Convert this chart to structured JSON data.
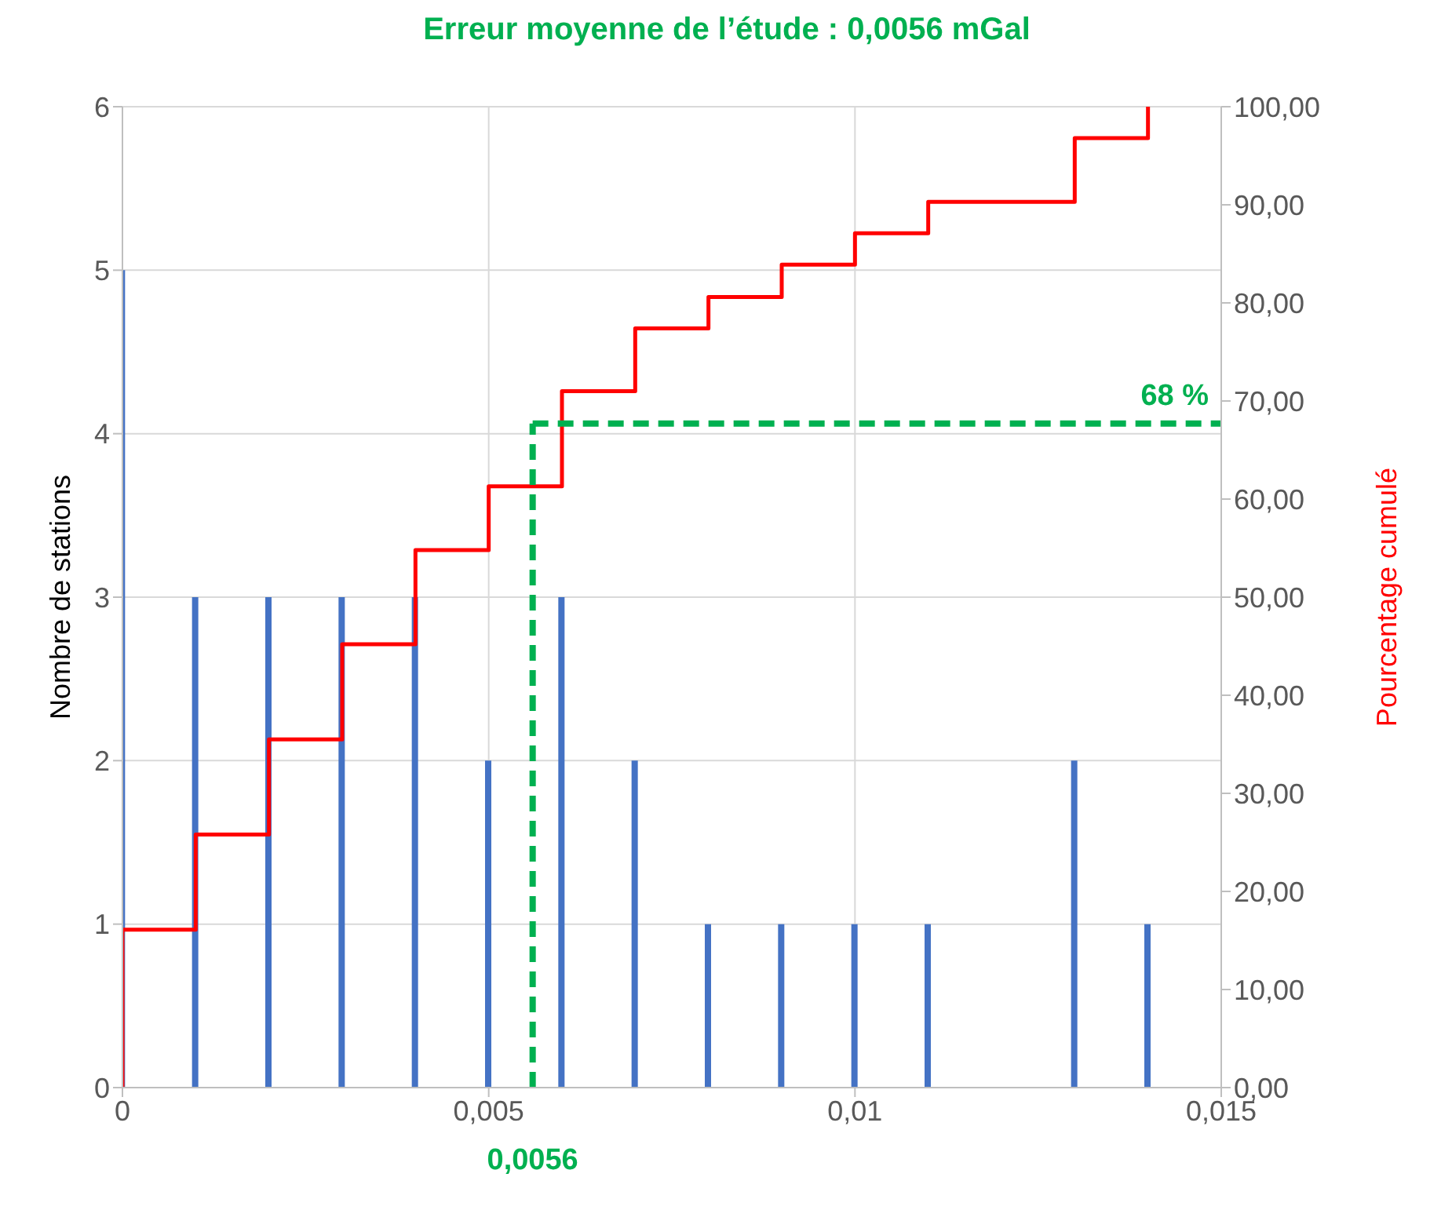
{
  "chart_data": {
    "type": "bar",
    "title": "Erreur moyenne de l’étude : 0,0056 mGal",
    "ylabel": "Nombre de stations",
    "y2label": "Pourcentage cumulé",
    "x": [
      0,
      0.001,
      0.002,
      0.003,
      0.004,
      0.005,
      0.006,
      0.007,
      0.008,
      0.009,
      0.01,
      0.011,
      0.012,
      0.013,
      0.014
    ],
    "series": [
      {
        "color": "#4472c4",
        "values": [
          5,
          3,
          3,
          3,
          3,
          2,
          3,
          2,
          1,
          1,
          1,
          1,
          0,
          2,
          1
        ]
      },
      {
        "type": "step",
        "axis": "y2",
        "color": "#ff0000",
        "x": [
          0,
          0,
          0.001,
          0.002,
          0.003,
          0.004,
          0.005,
          0.006,
          0.007,
          0.008,
          0.009,
          0.01,
          0.011,
          0.012,
          0.013,
          0.014
        ],
        "values": [
          0,
          16.1,
          25.8,
          35.5,
          45.2,
          54.8,
          61.3,
          71.0,
          77.4,
          80.6,
          83.9,
          87.1,
          90.3,
          90.3,
          96.8,
          100
        ]
      }
    ],
    "xlim": [
      0,
      0.015
    ],
    "xticks": [
      {
        "value": 0,
        "label": "0"
      },
      {
        "value": 0.005,
        "label": "0,005"
      },
      {
        "value": 0.01,
        "label": "0,01"
      },
      {
        "value": 0.015,
        "label": "0,015"
      }
    ],
    "ylim": [
      0,
      6
    ],
    "yticks": [
      0,
      1,
      2,
      3,
      4,
      5,
      6
    ],
    "y2lim": [
      0,
      100
    ],
    "y2ticks": [
      {
        "value": 0,
        "label": "0,00"
      },
      {
        "value": 10,
        "label": "10,00"
      },
      {
        "value": 20,
        "label": "20,00"
      },
      {
        "value": 30,
        "label": "30,00"
      },
      {
        "value": 40,
        "label": "40,00"
      },
      {
        "value": 50,
        "label": "50,00"
      },
      {
        "value": 60,
        "label": "60,00"
      },
      {
        "value": 70,
        "label": "70,00"
      },
      {
        "value": 80,
        "label": "80,00"
      },
      {
        "value": 90,
        "label": "90,00"
      },
      {
        "value": 100,
        "label": "100,00"
      }
    ],
    "ref_lines": [
      {
        "axis": "x",
        "value": 0.0056,
        "label": "0,0056",
        "color": "#00b050",
        "line_style": "dashed"
      },
      {
        "axis": "y2",
        "value": 67.7,
        "label": "68 %",
        "color": "#00b050",
        "line_style": "dashed"
      }
    ],
    "grid": true,
    "legend": false
  }
}
